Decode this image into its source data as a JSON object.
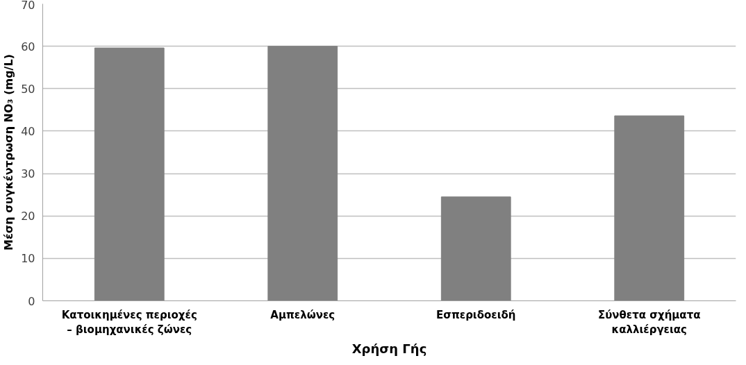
{
  "chart_data": {
    "type": "bar",
    "categories": [
      "Κατοικημένες περιοχές – βιομηχανικές ζώνες",
      "Αμπελώνες",
      "Εσπεριδοειδή",
      "Σύνθετα σχήματα καλλιέργειας"
    ],
    "values": [
      59.6,
      60,
      24.5,
      43.6
    ],
    "color": "#808080",
    "xlabel": "Χρήση Γής",
    "ylabel": "Μέση συγκέντρωση NO₃ (mg/L)",
    "ylim": [
      0,
      70
    ],
    "yticks": [
      0,
      10,
      20,
      30,
      40,
      50,
      60,
      70
    ],
    "grid": "y"
  }
}
